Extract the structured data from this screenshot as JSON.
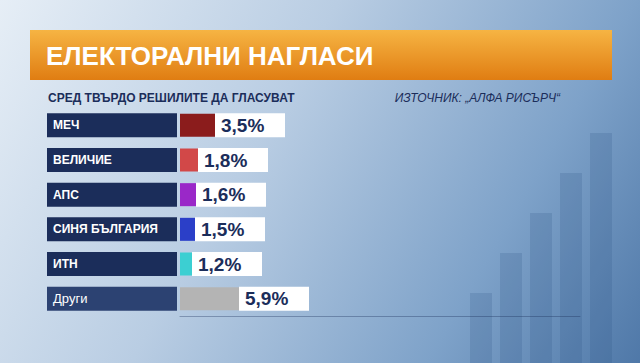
{
  "chart_data": {
    "type": "bar",
    "title": "ЕЛЕКТОРАЛНИ НАГЛАСИ",
    "subtitle": "СРЕД ТВЪРДО РЕШИЛИТЕ ДА ГЛАСУВАТ",
    "source": "ИЗТОЧНИК: „АЛФА РИСЪРЧ“",
    "orientation": "horizontal",
    "categories": [
      "МЕЧ",
      "ВЕЛИЧИЕ",
      "АПС",
      "СИНЯ БЪЛГАРИЯ",
      "ИТН",
      "Други"
    ],
    "values": [
      3.5,
      1.8,
      1.6,
      1.5,
      1.2,
      5.9
    ],
    "value_labels": [
      "3,5%",
      "1,8%",
      "1,6%",
      "1,5%",
      "1,2%",
      "5,9%"
    ],
    "colors": [
      "#8b1c1c",
      "#d24848",
      "#9a28c8",
      "#2b3fc8",
      "#3ccfd2",
      "#b4b4b4"
    ],
    "xlim": [
      0,
      40
    ],
    "data_labels": true,
    "tick_labels": "y",
    "grid": false
  }
}
